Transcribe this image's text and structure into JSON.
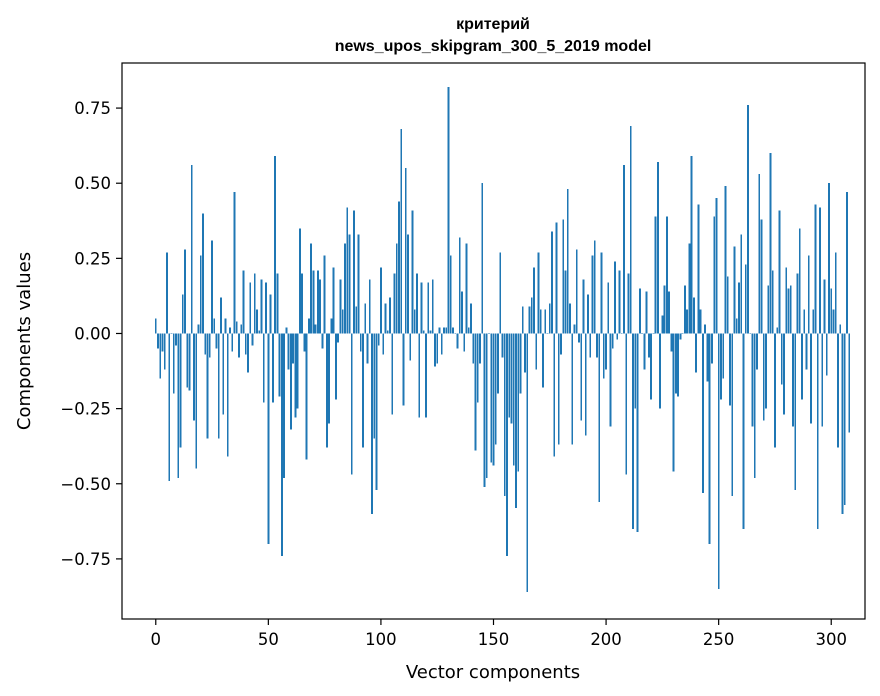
{
  "chart_data": {
    "type": "bar",
    "title": "критерий",
    "subtitle": "news_upos_skipgram_300_5_2019 model",
    "xlabel": "Vector components",
    "ylabel": "Components values",
    "bar_color": "#1f77b4",
    "xlim": [
      -15,
      315
    ],
    "ylim": [
      -0.95,
      0.9
    ],
    "xticks": [
      0,
      50,
      100,
      150,
      200,
      250,
      300
    ],
    "yticks": [
      -0.75,
      -0.5,
      -0.25,
      0.0,
      0.25,
      0.5,
      0.75
    ],
    "xtick_labels": [
      "0",
      "50",
      "100",
      "150",
      "200",
      "250",
      "300"
    ],
    "ytick_labels": [
      "−0.75",
      "−0.50",
      "−0.25",
      "0.00",
      "0.25",
      "0.50",
      "0.75"
    ],
    "grid": false,
    "values": [
      0.05,
      -0.05,
      -0.15,
      -0.06,
      -0.12,
      0.27,
      -0.49,
      0.0,
      -0.2,
      -0.04,
      -0.48,
      -0.38,
      0.13,
      0.28,
      -0.18,
      -0.19,
      0.56,
      -0.29,
      -0.45,
      0.03,
      0.26,
      0.4,
      -0.07,
      -0.35,
      -0.08,
      0.31,
      0.05,
      -0.05,
      -0.35,
      0.12,
      -0.27,
      0.05,
      -0.41,
      0.02,
      -0.06,
      0.47,
      0.04,
      -0.08,
      0.03,
      0.21,
      -0.07,
      -0.13,
      0.17,
      -0.04,
      0.2,
      0.08,
      0.01,
      0.18,
      -0.23,
      0.17,
      -0.7,
      0.13,
      -0.23,
      0.59,
      0.2,
      -0.21,
      -0.74,
      -0.48,
      0.02,
      -0.12,
      -0.32,
      -0.1,
      -0.28,
      -0.25,
      0.35,
      0.2,
      -0.06,
      -0.42,
      0.05,
      0.3,
      0.21,
      0.03,
      0.21,
      0.18,
      -0.05,
      0.26,
      -0.38,
      -0.3,
      0.05,
      0.22,
      -0.22,
      -0.03,
      0.18,
      0.08,
      0.3,
      0.42,
      0.33,
      -0.47,
      0.41,
      0.09,
      0.33,
      -0.06,
      -0.38,
      0.1,
      -0.1,
      0.18,
      -0.6,
      -0.35,
      -0.52,
      -0.04,
      0.22,
      -0.07,
      0.1,
      0.01,
      0.12,
      -0.27,
      0.2,
      0.3,
      0.44,
      0.68,
      -0.24,
      0.55,
      0.33,
      -0.09,
      0.41,
      0.08,
      0.2,
      -0.28,
      0.17,
      0.01,
      -0.28,
      0.17,
      0.01,
      0.18,
      -0.11,
      -0.1,
      0.02,
      -0.07,
      0.02,
      0.02,
      0.82,
      0.26,
      0.02,
      0.0,
      -0.05,
      0.32,
      0.14,
      -0.06,
      0.3,
      0.02,
      0.1,
      -0.1,
      -0.39,
      -0.23,
      -0.1,
      0.5,
      -0.51,
      -0.48,
      0.0,
      -0.43,
      -0.44,
      -0.37,
      -0.2,
      0.27,
      -0.08,
      -0.54,
      -0.74,
      -0.28,
      -0.3,
      -0.44,
      -0.58,
      -0.46,
      -0.2,
      0.09,
      -0.13,
      -0.86,
      0.09,
      0.12,
      0.22,
      -0.12,
      0.27,
      0.08,
      -0.18,
      0.08,
      0.0,
      0.1,
      0.34,
      -0.41,
      0.37,
      -0.37,
      -0.07,
      0.38,
      0.21,
      0.48,
      0.1,
      -0.37,
      0.03,
      0.28,
      -0.03,
      -0.29,
      0.18,
      -0.34,
      0.13,
      -0.08,
      0.26,
      0.31,
      -0.08,
      -0.56,
      0.27,
      -0.15,
      -0.12,
      0.17,
      -0.31,
      -0.05,
      0.24,
      -0.02,
      0.21,
      0.0,
      0.56,
      -0.47,
      0.2,
      0.69,
      -0.65,
      -0.25,
      -0.66,
      0.15,
      0.0,
      -0.12,
      0.14,
      -0.08,
      -0.22,
      0.0,
      0.39,
      0.57,
      -0.25,
      0.06,
      0.16,
      0.39,
      0.14,
      -0.06,
      -0.46,
      -0.2,
      -0.21,
      -0.02,
      0.0,
      0.16,
      0.08,
      0.3,
      0.59,
      0.12,
      -0.13,
      0.43,
      0.08,
      -0.53,
      0.03,
      -0.16,
      -0.7,
      -0.1,
      0.39,
      0.45,
      -0.85,
      -0.22,
      -0.15,
      0.49,
      0.19,
      -0.24,
      -0.54,
      0.29,
      0.05,
      0.17,
      0.33,
      -0.65,
      0.23,
      0.76,
      0.0,
      -0.31,
      -0.48,
      -0.12,
      0.53,
      0.38,
      -0.29,
      -0.25,
      0.16,
      0.6,
      0.21,
      -0.38,
      0.02,
      0.41,
      -0.17,
      -0.27,
      0.22,
      0.15,
      0.16,
      -0.31,
      -0.52,
      0.2,
      0.35,
      -0.22,
      0.08,
      -0.12,
      0.26,
      -0.3,
      0.08,
      0.43,
      -0.65,
      0.42,
      -0.31,
      0.18,
      -0.14,
      0.5,
      0.15,
      0.08,
      0.27,
      -0.38,
      0.03,
      -0.6,
      -0.57,
      0.47,
      -0.33
    ]
  }
}
